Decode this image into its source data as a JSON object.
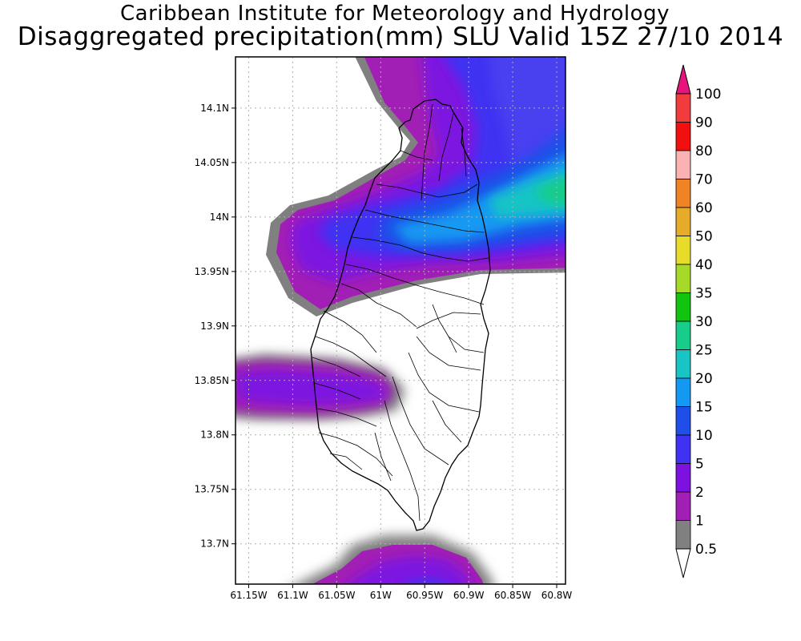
{
  "header": {
    "institute": "Caribbean Institute for Meteorology and Hydrology",
    "product": "Disaggregated precipitation(mm) SLU Valid 15Z 27/10 2014"
  },
  "map": {
    "lat_ticks": [
      "14.1N",
      "14.05N",
      "14N",
      "13.95N",
      "13.9N",
      "13.85N",
      "13.8N",
      "13.75N",
      "13.7N"
    ],
    "lat_values": [
      14.1,
      14.05,
      14.0,
      13.95,
      13.9,
      13.85,
      13.8,
      13.75,
      13.7
    ],
    "lon_ticks": [
      "61.15W",
      "61.1W",
      "61.05W",
      "61W",
      "60.95W",
      "60.9W",
      "60.85W",
      "60.8W"
    ],
    "lon_values": [
      -61.15,
      -61.1,
      -61.05,
      -61.0,
      -60.95,
      -60.9,
      -60.85,
      -60.8
    ],
    "extent": {
      "lon_min": -61.165,
      "lon_max": -60.79,
      "lat_min": 13.663,
      "lat_max": 14.147
    },
    "grid": true
  },
  "legend": {
    "levels": [
      "0.5",
      "1",
      "2",
      "5",
      "10",
      "15",
      "20",
      "25",
      "30",
      "35",
      "40",
      "50",
      "60",
      "70",
      "80",
      "90",
      "100"
    ],
    "colors": [
      "#ffffff",
      "#808080",
      "#a21fb5",
      "#7d12e0",
      "#4032f2",
      "#1f4fe8",
      "#1499f2",
      "#18c4c4",
      "#18cc8a",
      "#10c410",
      "#a6d928",
      "#e8dc2a",
      "#e6ab28",
      "#ef8326",
      "#fab2b2",
      "#f20f0f",
      "#f03c3c",
      "#e6157d"
    ]
  }
}
